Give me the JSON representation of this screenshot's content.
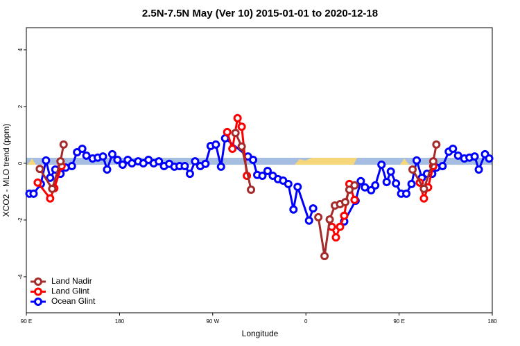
{
  "chart_data": {
    "type": "line",
    "title": "2.5N-7.5N May (Ver 10)   2015-01-01 to 2020-12-18",
    "xlabel": "Longitude",
    "ylabel": "XCO2 - MLO trend (ppm)",
    "xlim": [
      90,
      540
    ],
    "ylim": [
      -5.27,
      4.78
    ],
    "xticks": [
      {
        "value": 90,
        "label": "90 E"
      },
      180,
      {
        "value": 270,
        "label": "90 W"
      },
      {
        "value": 360,
        "label": "0"
      },
      {
        "value": 450,
        "label": "90 E"
      },
      180
    ],
    "yticks": [
      -4,
      -2,
      0,
      2,
      4
    ],
    "legend": "bottom-left",
    "series": [
      {
        "name": "Land Nadir",
        "color": "#a52a2a",
        "x": [
          103,
          115,
          123,
          126,
          null,
          292,
          298,
          307,
          null,
          372,
          378,
          383,
          388,
          393,
          398,
          402,
          407,
          null,
          463,
          474,
          483,
          486
        ],
        "values": [
          -0.2,
          -0.9,
          0.07,
          0.66,
          null,
          1.07,
          0.59,
          -0.93,
          null,
          -1.9,
          -3.27,
          -1.98,
          -1.49,
          -1.44,
          -1.37,
          -0.93,
          -0.78,
          null,
          -0.22,
          -0.9,
          0.07,
          0.66
        ]
      },
      {
        "name": "Land Glint",
        "color": "#ff0000",
        "x": [
          101,
          113,
          117,
          124,
          null,
          284,
          289,
          294,
          298,
          303,
          null,
          385,
          389,
          393,
          397,
          402,
          407,
          null,
          470,
          474,
          478,
          483
        ],
        "values": [
          -0.68,
          -1.24,
          -0.88,
          -0.1,
          null,
          1.1,
          0.51,
          1.59,
          1.29,
          -0.44,
          null,
          -2.24,
          -2.61,
          -2.24,
          -1.85,
          -0.73,
          -1.29,
          null,
          -0.68,
          -1.24,
          -0.85,
          -0.1
        ]
      },
      {
        "name": "Ocean Glint",
        "color": "#0000ff",
        "x": [
          93,
          97,
          104,
          109,
          113,
          118,
          123,
          128,
          134,
          139,
          144,
          148,
          154,
          159,
          164,
          168,
          173,
          178,
          183,
          188,
          192,
          198,
          203,
          208,
          213,
          218,
          223,
          228,
          233,
          238,
          243,
          248,
          253,
          258,
          263,
          268,
          273,
          278,
          282,
          304,
          309,
          313,
          318,
          323,
          328,
          333,
          338,
          343,
          348,
          352,
          363,
          367,
          null,
          397,
          408,
          413,
          417,
          423,
          427,
          433,
          438,
          442,
          447,
          452,
          457,
          462,
          467,
          472,
          477,
          482,
          486,
          492,
          498,
          502,
          507,
          513,
          518,
          523,
          527,
          533,
          537
        ],
        "values": [
          -1.07,
          -1.07,
          -0.73,
          0.1,
          -0.51,
          -0.22,
          -0.37,
          -0.15,
          -0.1,
          0.39,
          0.51,
          0.27,
          0.17,
          0.2,
          0.24,
          -0.22,
          0.32,
          0.12,
          -0.05,
          0.12,
          0,
          0.07,
          0,
          0.12,
          0,
          0.07,
          -0.1,
          -0.02,
          -0.12,
          -0.1,
          -0.1,
          -0.37,
          0.07,
          -0.1,
          -0.02,
          0.61,
          0.66,
          -0.12,
          0.88,
          0.24,
          0.12,
          -0.41,
          -0.44,
          -0.27,
          -0.44,
          -0.56,
          -0.61,
          -0.73,
          -1.63,
          -0.83,
          -2.02,
          -1.59,
          null,
          -2.05,
          -1.32,
          -0.63,
          -0.85,
          -0.95,
          -0.78,
          -0.05,
          -0.66,
          -0.29,
          -0.71,
          -1.07,
          -1.07,
          -0.73,
          0.1,
          -0.51,
          -0.37,
          -0.37,
          -0.15,
          -0.1,
          0.41,
          0.51,
          0.27,
          0.17,
          0.2,
          0.24,
          -0.22,
          0.32,
          0.17
        ]
      }
    ]
  }
}
